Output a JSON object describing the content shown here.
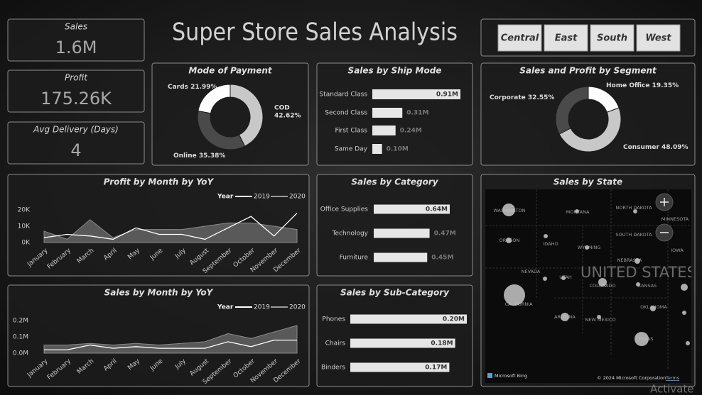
{
  "title": "Super Store Sales Analysis",
  "kpis": [
    {
      "label": "Sales",
      "value": "1.6M"
    },
    {
      "label": "Profit",
      "value": "175.26K"
    },
    {
      "label": "Avg Delivery (Days)",
      "value": "4"
    }
  ],
  "slicer": [
    "Central",
    "East",
    "South",
    "West"
  ],
  "chart_data": [
    {
      "type": "pie",
      "title": "Mode of Payment",
      "categories": [
        "COD",
        "Online",
        "Cards"
      ],
      "values": [
        42.62,
        35.38,
        21.99
      ],
      "value_labels": [
        "42.62%",
        "35.38%",
        "21.99%"
      ],
      "colors": [
        "#c8c8c8",
        "#4a4a4a",
        "#ffffff"
      ]
    },
    {
      "type": "bar",
      "orientation": "horizontal",
      "title": "Sales by Ship Mode",
      "categories": [
        "Standard Class",
        "Second Class",
        "First Class",
        "Same Day"
      ],
      "values": [
        0.91,
        0.31,
        0.24,
        0.1
      ],
      "value_labels": [
        "0.91M",
        "0.31M",
        "0.24M",
        "0.10M"
      ],
      "color": "#e6e6e6"
    },
    {
      "type": "pie",
      "title": "Sales and Profit by Segment",
      "categories": [
        "Home Office",
        "Consumer",
        "Corporate"
      ],
      "values": [
        19.35,
        48.09,
        32.55
      ],
      "value_labels": [
        "19.35%",
        "48.09%",
        "32.55%"
      ],
      "colors": [
        "#ffffff",
        "#c8c8c8",
        "#4a4a4a"
      ]
    },
    {
      "type": "line",
      "title": "Profit by Month by YoY",
      "legend_title": "Year",
      "categories": [
        "January",
        "February",
        "March",
        "April",
        "May",
        "June",
        "July",
        "August",
        "September",
        "October",
        "November",
        "December"
      ],
      "series": [
        {
          "name": "2019",
          "color": "#ffffff",
          "values": [
            3000,
            5000,
            4000,
            2000,
            9000,
            5000,
            5000,
            2000,
            9000,
            16000,
            4000,
            18000
          ]
        },
        {
          "name": "2020",
          "color": "#6e6e6e",
          "area": true,
          "values": [
            7000,
            2000,
            14000,
            3000,
            8000,
            8000,
            8000,
            10000,
            12000,
            12000,
            10000,
            8000
          ]
        }
      ],
      "ylim": [
        0,
        22000
      ],
      "yticks": [
        {
          "value": 0,
          "label": "0K"
        },
        {
          "value": 10000,
          "label": "10K"
        },
        {
          "value": 20000,
          "label": "20K"
        }
      ]
    },
    {
      "type": "bar",
      "orientation": "horizontal",
      "title": "Sales by Category",
      "categories": [
        "Office Supplies",
        "Technology",
        "Furniture"
      ],
      "values": [
        0.64,
        0.47,
        0.45
      ],
      "value_labels": [
        "0.64M",
        "0.47M",
        "0.45M"
      ],
      "color": "#e6e6e6"
    },
    {
      "type": "line",
      "title": "Sales by Month by YoY",
      "legend_title": "Year",
      "categories": [
        "January",
        "February",
        "March",
        "April",
        "May",
        "June",
        "July",
        "August",
        "September",
        "October",
        "November",
        "December"
      ],
      "series": [
        {
          "name": "2019",
          "color": "#ffffff",
          "values": [
            0.02,
            0.02,
            0.05,
            0.03,
            0.04,
            0.03,
            0.03,
            0.03,
            0.07,
            0.04,
            0.08,
            0.08
          ]
        },
        {
          "name": "2020",
          "color": "#6e6e6e",
          "area": true,
          "values": [
            0.05,
            0.05,
            0.06,
            0.05,
            0.06,
            0.05,
            0.06,
            0.07,
            0.12,
            0.09,
            0.13,
            0.17
          ]
        }
      ],
      "ylim": [
        0,
        0.22
      ],
      "yticks": [
        {
          "value": 0,
          "label": "0.0M"
        },
        {
          "value": 0.1,
          "label": "0.1M"
        },
        {
          "value": 0.2,
          "label": "0.2M"
        }
      ]
    },
    {
      "type": "bar",
      "orientation": "horizontal",
      "title": "Sales by Sub-Category",
      "categories": [
        "Phones",
        "Chairs",
        "Binders"
      ],
      "values": [
        0.2,
        0.18,
        0.17
      ],
      "value_labels": [
        "0.20M",
        "0.18M",
        "0.17M"
      ],
      "color": "#e6e6e6"
    }
  ],
  "map": {
    "title": "Sales by State",
    "country": "UNITED STATES",
    "labels": [
      "WASHINGTON",
      "MONTANA",
      "NORTH DAKOTA",
      "MINNESOTA",
      "OREGON",
      "IDAHO",
      "WYOMING",
      "SOUTH DAKOTA",
      "IOWA",
      "NEBRASKA",
      "NEVADA",
      "UTAH",
      "COLORADO",
      "KANSAS",
      "CALIFORNIA",
      "OKLAHOMA",
      "ARIZONA",
      "NEW MEXICO",
      "TEXAS"
    ],
    "provider": "Microsoft Bing",
    "copyright": "© 2024 Microsoft Corporation",
    "terms": "Terms"
  },
  "watermark": "Activate"
}
